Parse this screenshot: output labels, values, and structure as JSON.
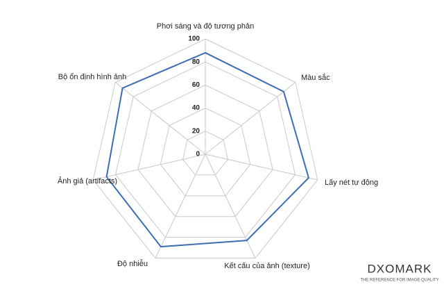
{
  "chart_data": {
    "type": "radar",
    "categories": [
      "Phơi sáng và độ tương phản",
      "Màu sắc",
      "Lấy nét tự động",
      "Kết cấu của ảnh (texture)",
      "Độ nhiễu",
      "Ảnh giả (artifacts)",
      "Bộ ổn định hình ảnh"
    ],
    "values": [
      88,
      87,
      92,
      83,
      89,
      88,
      92
    ],
    "color": "#3b6db3",
    "rlim": [
      0,
      100
    ],
    "rticks": [
      0,
      20,
      40,
      60,
      80,
      100
    ],
    "grid": true
  },
  "logo": {
    "name": "DXOMARK",
    "tagline": "THE REFERENCE FOR IMAGE QUALITY"
  }
}
